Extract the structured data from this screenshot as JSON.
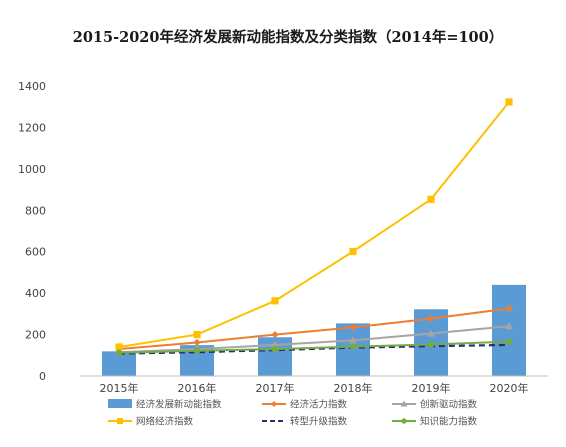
{
  "chart_data": {
    "type": "bar+line",
    "title": "2015-2020年经济发展新动能指数及分类指数（2014年=100）",
    "categories": [
      "2015年",
      "2016年",
      "2017年",
      "2018年",
      "2019年",
      "2020年"
    ],
    "ylim": [
      0,
      1400
    ],
    "yticks": [
      0,
      200,
      400,
      600,
      800,
      1000,
      1200,
      1400
    ],
    "grid": false,
    "legend_position": "bottom",
    "series": [
      {
        "name": "经济发展新动能指数",
        "kind": "bar",
        "color": "#5b9bd5",
        "values": [
          119,
          149,
          187,
          254,
          322,
          440
        ]
      },
      {
        "name": "经济活力指数",
        "kind": "line",
        "marker": "diamond",
        "color": "#ed7d31",
        "values": [
          130,
          162,
          200,
          235,
          277,
          326
        ]
      },
      {
        "name": "创新驱动指数",
        "kind": "line",
        "marker": "triangle",
        "color": "#a5a5a5",
        "values": [
          115,
          130,
          150,
          172,
          205,
          240
        ]
      },
      {
        "name": "网络经济指数",
        "kind": "line",
        "marker": "square",
        "color": "#ffc000",
        "values": [
          140,
          200,
          363,
          601,
          853,
          1323
        ]
      },
      {
        "name": "转型升级指数",
        "kind": "line",
        "marker": "none",
        "dashed": true,
        "color": "#2e2a6e",
        "values": [
          108,
          115,
          125,
          137,
          144,
          150
        ]
      },
      {
        "name": "知识能力指数",
        "kind": "line",
        "marker": "circle",
        "color": "#70ad47",
        "values": [
          112,
          122,
          130,
          142,
          152,
          166
        ]
      }
    ]
  }
}
